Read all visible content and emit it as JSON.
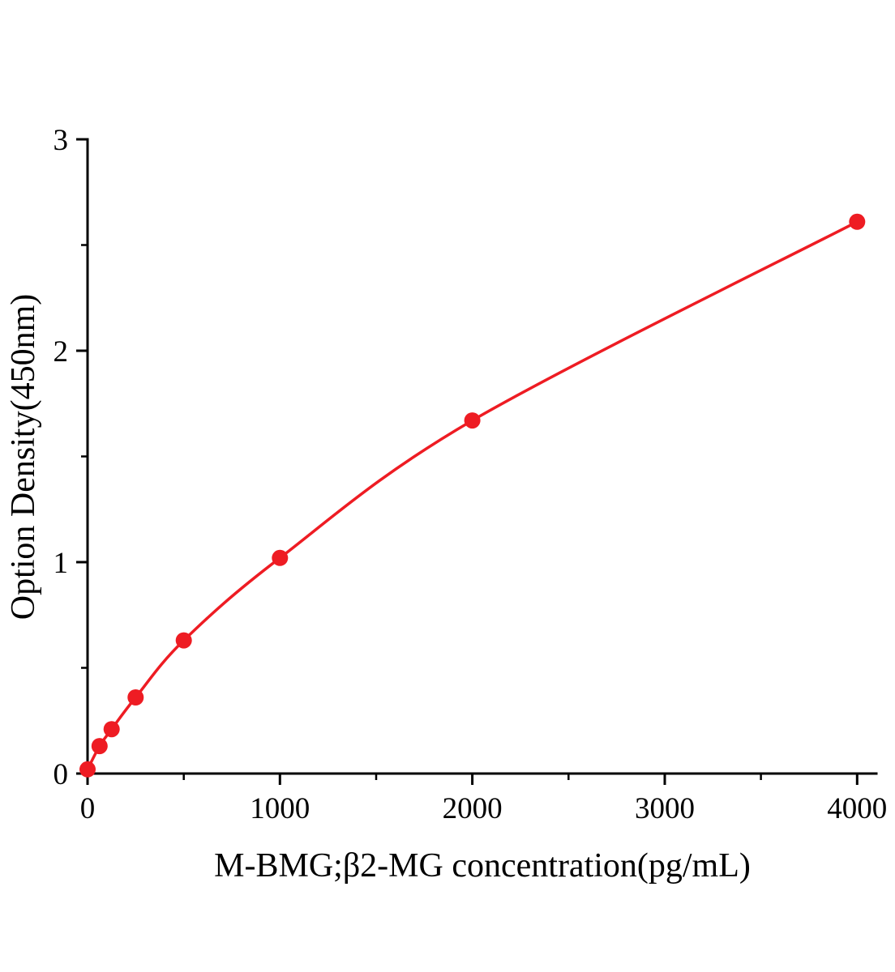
{
  "chart_data": {
    "type": "scatter",
    "title": "",
    "xlabel": "M-BMG;β2-MG concentration(pg/mL)",
    "ylabel": "Option Density(450nm)",
    "x": [
      0,
      62.5,
      125,
      250,
      500,
      1000,
      2000,
      4000
    ],
    "y": [
      0.02,
      0.13,
      0.21,
      0.36,
      0.63,
      1.02,
      1.67,
      2.61
    ],
    "xlim": [
      0,
      4100
    ],
    "ylim": [
      0,
      3
    ],
    "x_ticks": [
      0,
      1000,
      2000,
      3000,
      4000
    ],
    "x_minor_ticks": [
      500,
      1500,
      2500,
      3500
    ],
    "y_ticks": [
      0,
      1,
      2,
      3
    ],
    "y_minor_ticks": [
      0.5,
      1.5,
      2.5
    ],
    "grid": false,
    "legend": "none",
    "line_color": "#ee1c23",
    "marker_color": "#ee1c23",
    "axis_color": "#000000"
  }
}
